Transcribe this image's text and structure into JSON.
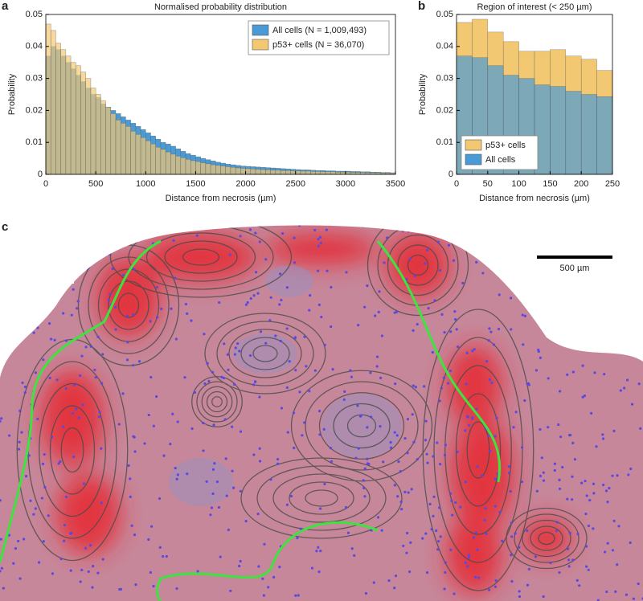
{
  "chart_data": [
    {
      "type": "histogram",
      "label": "a",
      "title": "Normalised probability distribution",
      "xlabel": "Distance from necrosis (µm)",
      "ylabel": "Probability",
      "bins": [
        0,
        50,
        100,
        150,
        200,
        250,
        300,
        350,
        400,
        450,
        500,
        550,
        600,
        650,
        700,
        750,
        800,
        850,
        900,
        950,
        1000,
        1050,
        1100,
        1150,
        1200,
        1250,
        1300,
        1350,
        1400,
        1450,
        1500,
        1550,
        1600,
        1650,
        1700,
        1750,
        1800,
        1850,
        1900,
        1950,
        2000,
        2050,
        2100,
        2150,
        2200,
        2250,
        2300,
        2350,
        2400,
        2450,
        2500,
        2550,
        2600,
        2650,
        2700,
        2750,
        2800,
        2850,
        2900,
        2950,
        3000,
        3050,
        3100,
        3150,
        3200,
        3250,
        3300,
        3350,
        3400,
        3450,
        3500
      ],
      "series": [
        {
          "name": "All cells (N = 1,009,493)",
          "color": "#4a9ad6",
          "values": [
            0.037,
            0.04,
            0.039,
            0.037,
            0.035,
            0.033,
            0.031,
            0.029,
            0.027,
            0.025,
            0.024,
            0.022,
            0.021,
            0.02,
            0.019,
            0.018,
            0.017,
            0.016,
            0.015,
            0.014,
            0.013,
            0.012,
            0.011,
            0.01,
            0.0095,
            0.0088,
            0.008,
            0.0072,
            0.0065,
            0.006,
            0.0055,
            0.005,
            0.0046,
            0.0042,
            0.0038,
            0.0035,
            0.0032,
            0.003,
            0.0028,
            0.0026,
            0.0025,
            0.0024,
            0.0023,
            0.0022,
            0.0021,
            0.002,
            0.0019,
            0.0018,
            0.0017,
            0.0016,
            0.0015,
            0.0014,
            0.0014,
            0.0013,
            0.0012,
            0.0012,
            0.0011,
            0.0011,
            0.001,
            0.001,
            0.001,
            0.0009,
            0.0009,
            0.0008,
            0.0008,
            0.0007,
            0.0007,
            0.0006,
            0.0006,
            0.0005
          ]
        },
        {
          "name": "p53+ cells (N = 36,070)",
          "color": "#f3c873",
          "values": [
            0.047,
            0.045,
            0.041,
            0.039,
            0.037,
            0.035,
            0.034,
            0.032,
            0.03,
            0.027,
            0.025,
            0.023,
            0.021,
            0.019,
            0.017,
            0.016,
            0.015,
            0.0135,
            0.0125,
            0.0115,
            0.0105,
            0.0095,
            0.0085,
            0.0078,
            0.007,
            0.0063,
            0.0057,
            0.0052,
            0.0047,
            0.0043,
            0.004,
            0.0036,
            0.0033,
            0.003,
            0.0028,
            0.0026,
            0.0024,
            0.0022,
            0.002,
            0.0019,
            0.0018,
            0.0017,
            0.0016,
            0.0015,
            0.0014,
            0.0013,
            0.0013,
            0.0012,
            0.0012,
            0.0011,
            0.0011,
            0.001,
            0.001,
            0.0009,
            0.0009,
            0.0008,
            0.0008,
            0.0008,
            0.0007,
            0.0007,
            0.0007,
            0.0006,
            0.0006,
            0.0006,
            0.0005,
            0.0005,
            0.0005,
            0.0004,
            0.0004,
            0.0004
          ]
        }
      ],
      "xlim": [
        0,
        3500
      ],
      "xticks": [
        0,
        500,
        1000,
        1500,
        2000,
        2500,
        3000,
        3500
      ],
      "ylim": [
        0,
        0.05
      ],
      "yticks": [
        0,
        0.01,
        0.02,
        0.03,
        0.04,
        0.05
      ],
      "legend": "upper right"
    },
    {
      "type": "histogram",
      "label": "b",
      "title": "Region of interest (< 250 µm)",
      "xlabel": "Distance from necrosis (µm)",
      "ylabel": "Probability",
      "bins": [
        0,
        25,
        50,
        75,
        100,
        125,
        150,
        175,
        200,
        225,
        250
      ],
      "series": [
        {
          "name": "p53+ cells",
          "color": "#f3c873",
          "values": [
            0.0475,
            0.0485,
            0.0445,
            0.0415,
            0.0385,
            0.0385,
            0.039,
            0.037,
            0.036,
            0.0325
          ]
        },
        {
          "name": "All cells",
          "color": "#4a9ad6",
          "values": [
            0.037,
            0.0365,
            0.034,
            0.031,
            0.03,
            0.028,
            0.0275,
            0.026,
            0.025,
            0.0243
          ]
        }
      ],
      "xlim": [
        0,
        250
      ],
      "xticks": [
        0,
        50,
        100,
        150,
        200,
        250
      ],
      "ylim": [
        0,
        0.05
      ],
      "yticks": [
        0,
        0.01,
        0.02,
        0.03,
        0.04,
        0.05
      ],
      "legend": "lower left"
    }
  ],
  "image": {
    "label": "c",
    "scale_bar": "500 µm"
  }
}
